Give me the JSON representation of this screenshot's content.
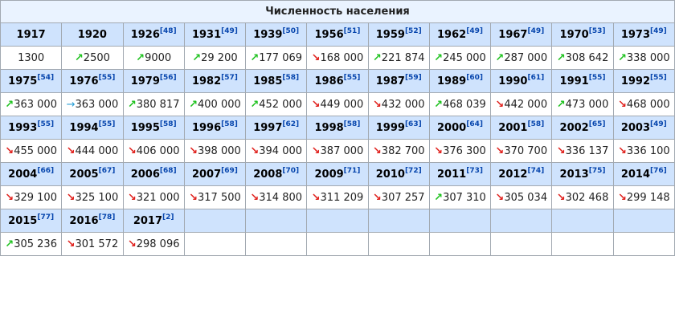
{
  "title": "Численность населения",
  "colors": {
    "up": "#1ec21e",
    "down": "#e0201c",
    "same": "#2a9fd6",
    "header_bg": "#cfe3fd"
  },
  "icons": {
    "up": "arrow-up-right-icon",
    "down": "arrow-down-right-icon",
    "same": "arrow-right-icon"
  },
  "entries": [
    {
      "year": "1917",
      "ref": "",
      "value": "1300",
      "trend": ""
    },
    {
      "year": "1920",
      "ref": "",
      "value": "2500",
      "trend": "up"
    },
    {
      "year": "1926",
      "ref": "[48]",
      "value": "9000",
      "trend": "up"
    },
    {
      "year": "1931",
      "ref": "[49]",
      "value": "29 200",
      "trend": "up"
    },
    {
      "year": "1939",
      "ref": "[50]",
      "value": "177 069",
      "trend": "up"
    },
    {
      "year": "1956",
      "ref": "[51]",
      "value": "168 000",
      "trend": "down"
    },
    {
      "year": "1959",
      "ref": "[52]",
      "value": "221 874",
      "trend": "up"
    },
    {
      "year": "1962",
      "ref": "[49]",
      "value": "245 000",
      "trend": "up"
    },
    {
      "year": "1967",
      "ref": "[49]",
      "value": "287 000",
      "trend": "up"
    },
    {
      "year": "1970",
      "ref": "[53]",
      "value": "308 642",
      "trend": "up"
    },
    {
      "year": "1973",
      "ref": "[49]",
      "value": "338 000",
      "trend": "up"
    },
    {
      "year": "1975",
      "ref": "[54]",
      "value": "363 000",
      "trend": "up"
    },
    {
      "year": "1976",
      "ref": "[55]",
      "value": "363 000",
      "trend": "same"
    },
    {
      "year": "1979",
      "ref": "[56]",
      "value": "380 817",
      "trend": "up"
    },
    {
      "year": "1982",
      "ref": "[57]",
      "value": "400 000",
      "trend": "up"
    },
    {
      "year": "1985",
      "ref": "[58]",
      "value": "452 000",
      "trend": "up"
    },
    {
      "year": "1986",
      "ref": "[55]",
      "value": "449 000",
      "trend": "down"
    },
    {
      "year": "1987",
      "ref": "[59]",
      "value": "432 000",
      "trend": "down"
    },
    {
      "year": "1989",
      "ref": "[60]",
      "value": "468 039",
      "trend": "up"
    },
    {
      "year": "1990",
      "ref": "[61]",
      "value": "442 000",
      "trend": "down"
    },
    {
      "year": "1991",
      "ref": "[55]",
      "value": "473 000",
      "trend": "up"
    },
    {
      "year": "1992",
      "ref": "[55]",
      "value": "468 000",
      "trend": "down"
    },
    {
      "year": "1993",
      "ref": "[55]",
      "value": "455 000",
      "trend": "down"
    },
    {
      "year": "1994",
      "ref": "[55]",
      "value": "444 000",
      "trend": "down"
    },
    {
      "year": "1995",
      "ref": "[58]",
      "value": "406 000",
      "trend": "down"
    },
    {
      "year": "1996",
      "ref": "[58]",
      "value": "398 000",
      "trend": "down"
    },
    {
      "year": "1997",
      "ref": "[62]",
      "value": "394 000",
      "trend": "down"
    },
    {
      "year": "1998",
      "ref": "[58]",
      "value": "387 000",
      "trend": "down"
    },
    {
      "year": "1999",
      "ref": "[63]",
      "value": "382 700",
      "trend": "down"
    },
    {
      "year": "2000",
      "ref": "[64]",
      "value": "376 300",
      "trend": "down"
    },
    {
      "year": "2001",
      "ref": "[58]",
      "value": "370 700",
      "trend": "down"
    },
    {
      "year": "2002",
      "ref": "[65]",
      "value": "336 137",
      "trend": "down"
    },
    {
      "year": "2003",
      "ref": "[49]",
      "value": "336 100",
      "trend": "down"
    },
    {
      "year": "2004",
      "ref": "[66]",
      "value": "329 100",
      "trend": "down"
    },
    {
      "year": "2005",
      "ref": "[67]",
      "value": "325 100",
      "trend": "down"
    },
    {
      "year": "2006",
      "ref": "[68]",
      "value": "321 000",
      "trend": "down"
    },
    {
      "year": "2007",
      "ref": "[69]",
      "value": "317 500",
      "trend": "down"
    },
    {
      "year": "2008",
      "ref": "[70]",
      "value": "314 800",
      "trend": "down"
    },
    {
      "year": "2009",
      "ref": "[71]",
      "value": "311 209",
      "trend": "down"
    },
    {
      "year": "2010",
      "ref": "[72]",
      "value": "307 257",
      "trend": "down"
    },
    {
      "year": "2011",
      "ref": "[73]",
      "value": "307 310",
      "trend": "up"
    },
    {
      "year": "2012",
      "ref": "[74]",
      "value": "305 034",
      "trend": "down"
    },
    {
      "year": "2013",
      "ref": "[75]",
      "value": "302 468",
      "trend": "down"
    },
    {
      "year": "2014",
      "ref": "[76]",
      "value": "299 148",
      "trend": "down"
    },
    {
      "year": "2015",
      "ref": "[77]",
      "value": "305 236",
      "trend": "up"
    },
    {
      "year": "2016",
      "ref": "[78]",
      "value": "301 572",
      "trend": "down"
    },
    {
      "year": "2017",
      "ref": "[2]",
      "value": "298 096",
      "trend": "down"
    }
  ]
}
